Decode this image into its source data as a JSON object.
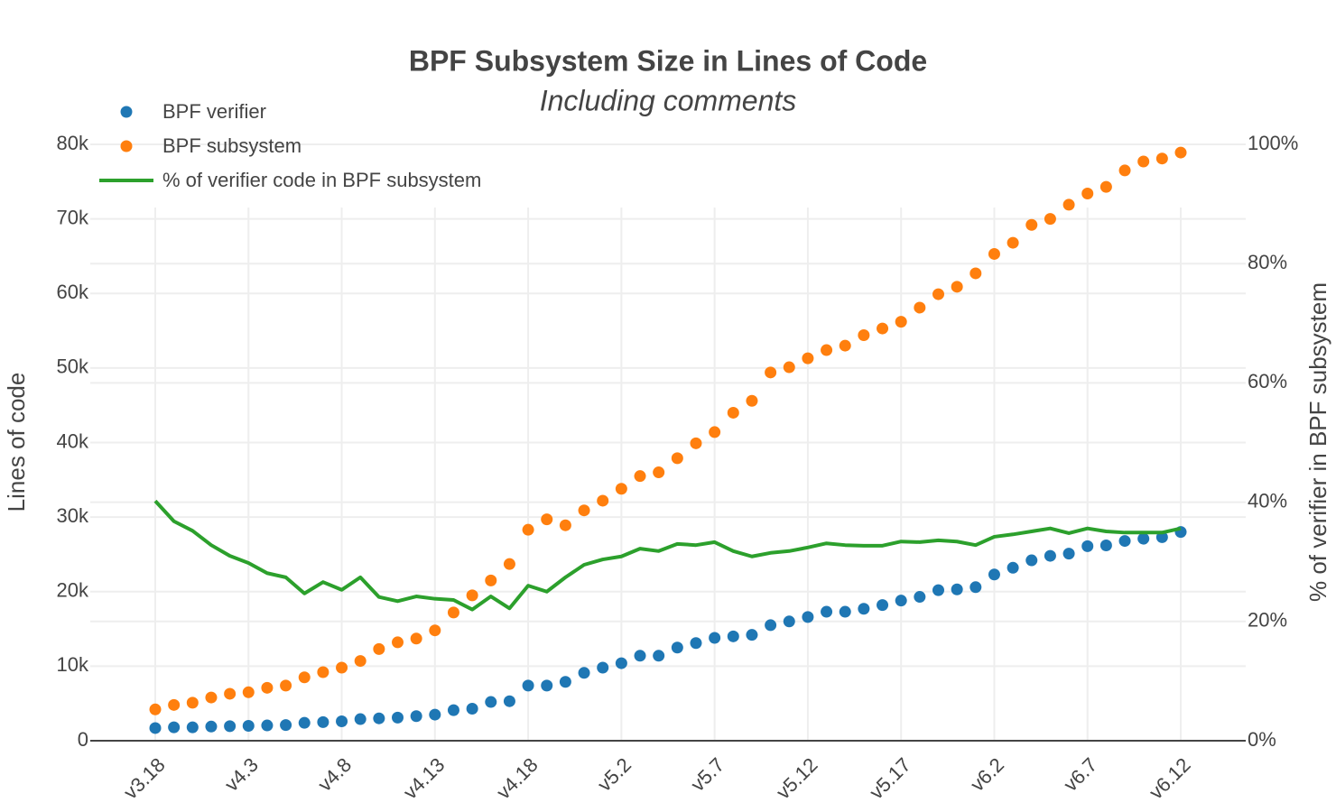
{
  "chart_data": {
    "type": "scatter",
    "title": "BPF Subsystem Size in Lines of Code",
    "subtitle": "Including comments",
    "y_label": "Lines of code",
    "y2_label": "% of verifier in BPF subsystem",
    "categories": [
      "v3.18",
      null,
      null,
      null,
      null,
      "v4.3",
      null,
      null,
      null,
      null,
      "v4.8",
      null,
      null,
      null,
      null,
      "v4.13",
      null,
      null,
      null,
      null,
      "v4.18",
      null,
      null,
      null,
      null,
      "v5.2",
      null,
      null,
      null,
      null,
      "v5.7",
      null,
      null,
      null,
      null,
      "v5.12",
      null,
      null,
      null,
      null,
      "v5.17",
      null,
      null,
      null,
      null,
      "v6.2",
      null,
      null,
      null,
      null,
      "v6.7",
      null,
      null,
      null,
      null,
      "v6.12"
    ],
    "series": [
      {
        "name": "BPF verifier",
        "color": "#1f77b4",
        "mode": "markers",
        "values": [
          1700,
          1800,
          1800,
          1900,
          1950,
          2000,
          2050,
          2100,
          2400,
          2500,
          2600,
          2900,
          3000,
          3100,
          3300,
          3500,
          4100,
          4300,
          5200,
          5300,
          7400,
          7400,
          7900,
          9100,
          9800,
          10400,
          11400,
          11400,
          12500,
          13100,
          13800,
          14000,
          14200,
          15500,
          16000,
          16600,
          17300,
          17300,
          17700,
          18200,
          18800,
          19300,
          20200,
          20300,
          20600,
          22300,
          23200,
          24200,
          24800,
          25100,
          26100,
          26200,
          26800,
          27100,
          27300,
          28000
        ]
      },
      {
        "name": "BPF subsystem",
        "color": "#ff7f0e",
        "mode": "markers",
        "values": [
          4200,
          4800,
          5100,
          5800,
          6300,
          6500,
          7100,
          7400,
          8500,
          9200,
          9800,
          10700,
          12300,
          13200,
          13700,
          14800,
          17200,
          19500,
          21500,
          23700,
          28300,
          29700,
          28900,
          30900,
          32200,
          33800,
          35500,
          36000,
          37900,
          39900,
          41400,
          44000,
          45600,
          49400,
          50100,
          51300,
          52400,
          53000,
          54400,
          55300,
          56200,
          58100,
          59900,
          60900,
          62700,
          65300,
          66800,
          69200,
          70000,
          71900,
          73400,
          74300,
          76500,
          77700,
          78100,
          78900
        ]
      },
      {
        "name": "% of verifier code in BPF subsystem",
        "color": "#2ca02c",
        "mode": "lines",
        "axis": "y2",
        "values": [
          40.2,
          36.8,
          35.2,
          32.8,
          31.0,
          29.8,
          28.1,
          27.4,
          24.7,
          26.6,
          25.3,
          27.4,
          24.1,
          23.4,
          24.2,
          23.8,
          23.6,
          22.0,
          24.2,
          22.2,
          26.0,
          25.0,
          27.4,
          29.5,
          30.4,
          30.9,
          32.2,
          31.8,
          33.0,
          32.8,
          33.3,
          31.8,
          30.9,
          31.5,
          31.8,
          32.4,
          33.1,
          32.8,
          32.7,
          32.7,
          33.4,
          33.3,
          33.6,
          33.4,
          32.8,
          34.2,
          34.6,
          35.1,
          35.6,
          34.8,
          35.6,
          35.1,
          34.9,
          34.9,
          34.9,
          35.6
        ]
      }
    ],
    "ylim": [
      0,
      80000
    ],
    "yticks": [
      0,
      {
        "value": 10000,
        "label": "10k"
      },
      {
        "value": 20000,
        "label": "20k"
      },
      {
        "value": 30000,
        "label": "30k"
      },
      {
        "value": 40000,
        "label": "40k"
      },
      {
        "value": 50000,
        "label": "50k"
      },
      {
        "value": 60000,
        "label": "60k"
      },
      {
        "value": 70000,
        "label": "70k"
      },
      {
        "value": 80000,
        "label": "80k"
      }
    ],
    "y2lim": [
      0,
      100
    ],
    "y2ticks": [
      {
        "value": 0,
        "label": "0%"
      },
      {
        "value": 20,
        "label": "20%"
      },
      {
        "value": 40,
        "label": "40%"
      },
      {
        "value": 60,
        "label": "60%"
      },
      {
        "value": 80,
        "label": "80%"
      },
      {
        "value": 100,
        "label": "100%"
      }
    ],
    "grid": true,
    "legend": "top-left"
  }
}
